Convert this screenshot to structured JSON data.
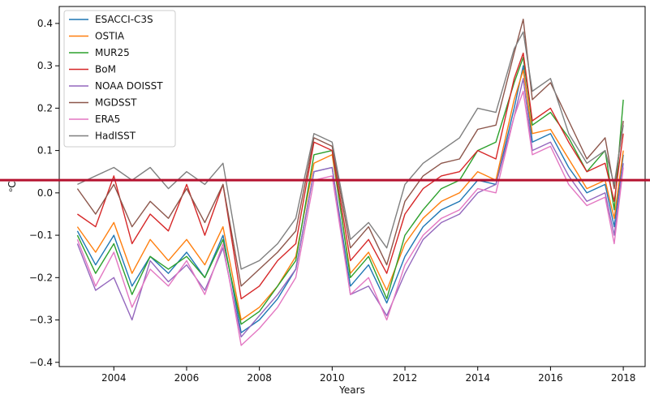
{
  "chart_data": {
    "type": "line",
    "title": "",
    "xlabel": "Years",
    "ylabel": "ᵒC",
    "xlim": [
      2002.5,
      2018.6
    ],
    "ylim": [
      -0.41,
      0.44
    ],
    "x_ticks": [
      2004,
      2006,
      2008,
      2010,
      2012,
      2014,
      2016,
      2018
    ],
    "x_tick_labels": [
      "2004",
      "2006",
      "2008",
      "2010",
      "2012",
      "2014",
      "2016",
      "2018"
    ],
    "y_ticks": [
      -0.4,
      -0.3,
      -0.2,
      -0.1,
      0.0,
      0.1,
      0.2,
      0.3,
      0.4
    ],
    "y_tick_labels": [
      "−0.4",
      "−0.3",
      "−0.2",
      "−0.1",
      "0.0",
      "0.1",
      "0.2",
      "0.3",
      "0.4"
    ],
    "grid": false,
    "legend_position": "top-left",
    "reference_line": {
      "y": 0.03,
      "color": "#b5122f"
    },
    "x": [
      2003.0,
      2003.5,
      2004.0,
      2004.5,
      2005.0,
      2005.5,
      2006.0,
      2006.5,
      2007.0,
      2007.5,
      2008.0,
      2008.5,
      2009.0,
      2009.5,
      2010.0,
      2010.5,
      2011.0,
      2011.5,
      2012.0,
      2012.5,
      2013.0,
      2013.5,
      2014.0,
      2014.5,
      2015.0,
      2015.25,
      2015.5,
      2016.0,
      2016.5,
      2017.0,
      2017.5,
      2017.75,
      2018.0
    ],
    "series": [
      {
        "name": "ESACCI-C3S",
        "color": "#1f77b4",
        "values": [
          -0.09,
          -0.17,
          -0.1,
          -0.22,
          -0.15,
          -0.19,
          -0.14,
          -0.2,
          -0.1,
          -0.33,
          -0.3,
          -0.25,
          -0.18,
          0.05,
          0.06,
          -0.22,
          -0.17,
          -0.26,
          -0.15,
          -0.08,
          -0.04,
          -0.02,
          0.03,
          0.02,
          0.2,
          0.3,
          0.12,
          0.14,
          0.06,
          0.0,
          0.02,
          -0.08,
          0.09
        ]
      },
      {
        "name": "OSTIA",
        "color": "#ff7f0e",
        "values": [
          -0.08,
          -0.14,
          -0.07,
          -0.19,
          -0.11,
          -0.16,
          -0.11,
          -0.17,
          -0.08,
          -0.3,
          -0.27,
          -0.22,
          -0.15,
          0.07,
          0.09,
          -0.19,
          -0.14,
          -0.23,
          -0.12,
          -0.06,
          -0.02,
          0.0,
          0.05,
          0.03,
          0.22,
          0.29,
          0.14,
          0.15,
          0.08,
          0.01,
          0.03,
          -0.06,
          0.1
        ]
      },
      {
        "name": "MUR25",
        "color": "#2ca02c",
        "values": [
          -0.1,
          -0.19,
          -0.12,
          -0.24,
          -0.15,
          -0.18,
          -0.15,
          -0.2,
          -0.11,
          -0.31,
          -0.28,
          -0.22,
          -0.16,
          0.09,
          0.1,
          -0.2,
          -0.15,
          -0.25,
          -0.1,
          -0.04,
          0.01,
          0.03,
          0.1,
          0.12,
          0.26,
          0.32,
          0.16,
          0.19,
          0.13,
          0.05,
          0.1,
          -0.04,
          0.22
        ]
      },
      {
        "name": "BoM",
        "color": "#d62728",
        "values": [
          -0.05,
          -0.08,
          0.04,
          -0.12,
          -0.05,
          -0.09,
          0.02,
          -0.1,
          0.02,
          -0.25,
          -0.22,
          -0.16,
          -0.12,
          0.12,
          0.1,
          -0.16,
          -0.11,
          -0.19,
          -0.05,
          0.01,
          0.04,
          0.05,
          0.1,
          0.08,
          0.27,
          0.33,
          0.17,
          0.2,
          0.12,
          0.05,
          0.07,
          -0.02,
          0.14
        ]
      },
      {
        "name": "NOAA DOISST",
        "color": "#9467bd",
        "values": [
          -0.12,
          -0.23,
          -0.2,
          -0.3,
          -0.16,
          -0.21,
          -0.17,
          -0.23,
          -0.13,
          -0.34,
          -0.29,
          -0.24,
          -0.18,
          0.05,
          0.06,
          -0.24,
          -0.22,
          -0.29,
          -0.19,
          -0.11,
          -0.07,
          -0.05,
          0.0,
          0.02,
          0.18,
          0.27,
          0.1,
          0.12,
          0.04,
          -0.02,
          0.0,
          -0.1,
          0.07
        ]
      },
      {
        "name": "MGDSST",
        "color": "#8c564b",
        "values": [
          0.01,
          -0.05,
          0.02,
          -0.08,
          -0.02,
          -0.06,
          0.01,
          -0.07,
          0.02,
          -0.22,
          -0.18,
          -0.14,
          -0.09,
          0.13,
          0.11,
          -0.13,
          -0.08,
          -0.17,
          -0.02,
          0.04,
          0.07,
          0.08,
          0.15,
          0.16,
          0.33,
          0.41,
          0.22,
          0.26,
          0.17,
          0.08,
          0.13,
          0.01,
          0.17
        ]
      },
      {
        "name": "ERA5",
        "color": "#e377c2",
        "values": [
          -0.11,
          -0.22,
          -0.14,
          -0.27,
          -0.18,
          -0.22,
          -0.16,
          -0.24,
          -0.12,
          -0.36,
          -0.32,
          -0.27,
          -0.2,
          0.03,
          0.04,
          -0.24,
          -0.2,
          -0.3,
          -0.17,
          -0.1,
          -0.06,
          -0.04,
          0.01,
          0.0,
          0.18,
          0.24,
          0.09,
          0.11,
          0.02,
          -0.03,
          -0.01,
          -0.12,
          0.06
        ]
      },
      {
        "name": "HadISST",
        "color": "#7f7f7f",
        "values": [
          0.02,
          0.04,
          0.06,
          0.03,
          0.06,
          0.01,
          0.05,
          0.02,
          0.07,
          -0.18,
          -0.16,
          -0.12,
          -0.06,
          0.14,
          0.12,
          -0.11,
          -0.07,
          -0.13,
          0.02,
          0.07,
          0.1,
          0.13,
          0.2,
          0.19,
          0.34,
          0.38,
          0.24,
          0.27,
          0.14,
          0.07,
          0.1,
          0.02,
          0.16
        ]
      }
    ]
  }
}
